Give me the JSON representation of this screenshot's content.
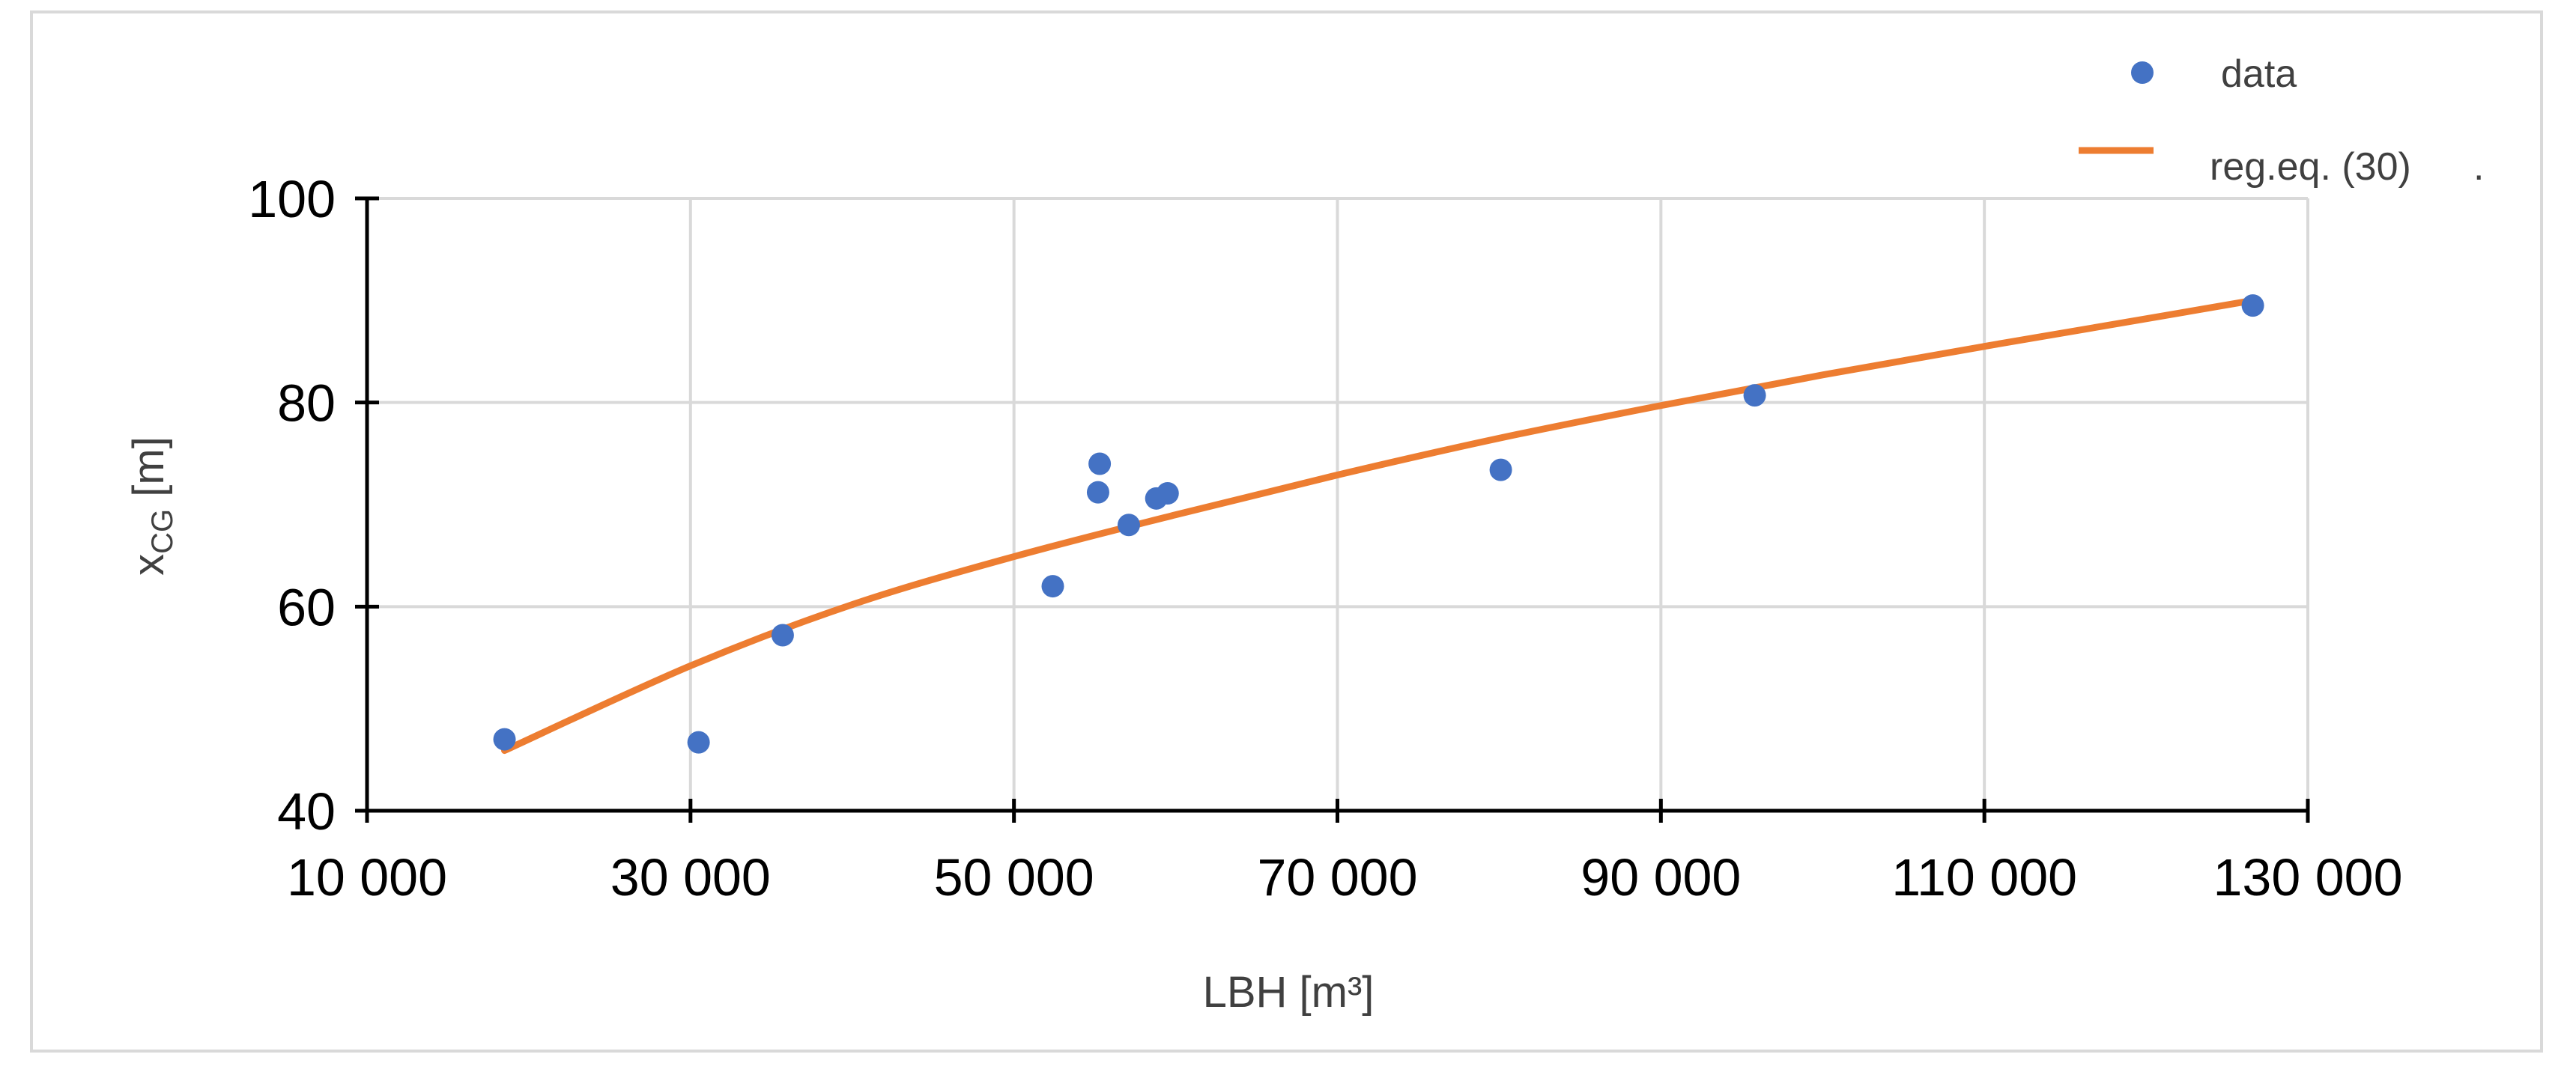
{
  "chart_data": {
    "type": "scatter",
    "title": "",
    "xlabel": "LBH [m³]",
    "ylabel_main": "x",
    "ylabel_sub": "CG",
    "ylabel_unit": " [m]",
    "xlim": [
      10000,
      130000
    ],
    "ylim": [
      40,
      100
    ],
    "x_ticks": [
      10000,
      30000,
      50000,
      70000,
      90000,
      110000,
      130000
    ],
    "x_tick_labels": [
      "10 000",
      "30 000",
      "50 000",
      "70 000",
      "90 000",
      "110 000",
      "130 000"
    ],
    "y_ticks": [
      40,
      60,
      80,
      100
    ],
    "y_tick_labels": [
      "40",
      "60",
      "80",
      "100"
    ],
    "grid": true,
    "legend_position": "top-right",
    "colors": {
      "data": "#4472c4",
      "regression": "#ed7d31",
      "grid": "#d9d9d9",
      "axis": "#000000"
    },
    "series": [
      {
        "name": "data",
        "kind": "scatter",
        "points": [
          {
            "x": 18500,
            "y": 47.0
          },
          {
            "x": 30500,
            "y": 46.7
          },
          {
            "x": 35700,
            "y": 57.2
          },
          {
            "x": 52400,
            "y": 62.0
          },
          {
            "x": 55300,
            "y": 74.0
          },
          {
            "x": 55200,
            "y": 71.2
          },
          {
            "x": 57100,
            "y": 68.0
          },
          {
            "x": 58800,
            "y": 70.6
          },
          {
            "x": 59500,
            "y": 71.1
          },
          {
            "x": 80100,
            "y": 73.4
          },
          {
            "x": 95800,
            "y": 80.7
          },
          {
            "x": 126600,
            "y": 89.5
          }
        ]
      },
      {
        "name": "reg.eq. (30)",
        "kind": "line",
        "points": [
          {
            "x": 18500,
            "y": 45.9
          },
          {
            "x": 30000,
            "y": 54.2
          },
          {
            "x": 40000,
            "y": 60.2
          },
          {
            "x": 50000,
            "y": 64.9
          },
          {
            "x": 60000,
            "y": 69.0
          },
          {
            "x": 70000,
            "y": 72.9
          },
          {
            "x": 80000,
            "y": 76.5
          },
          {
            "x": 90000,
            "y": 79.7
          },
          {
            "x": 100000,
            "y": 82.7
          },
          {
            "x": 110000,
            "y": 85.5
          },
          {
            "x": 120000,
            "y": 88.2
          },
          {
            "x": 126600,
            "y": 90.0
          }
        ]
      }
    ]
  },
  "legend": {
    "items": [
      {
        "label": "data"
      },
      {
        "label": "reg.eq. (30)"
      }
    ],
    "trailing_mark": "."
  }
}
